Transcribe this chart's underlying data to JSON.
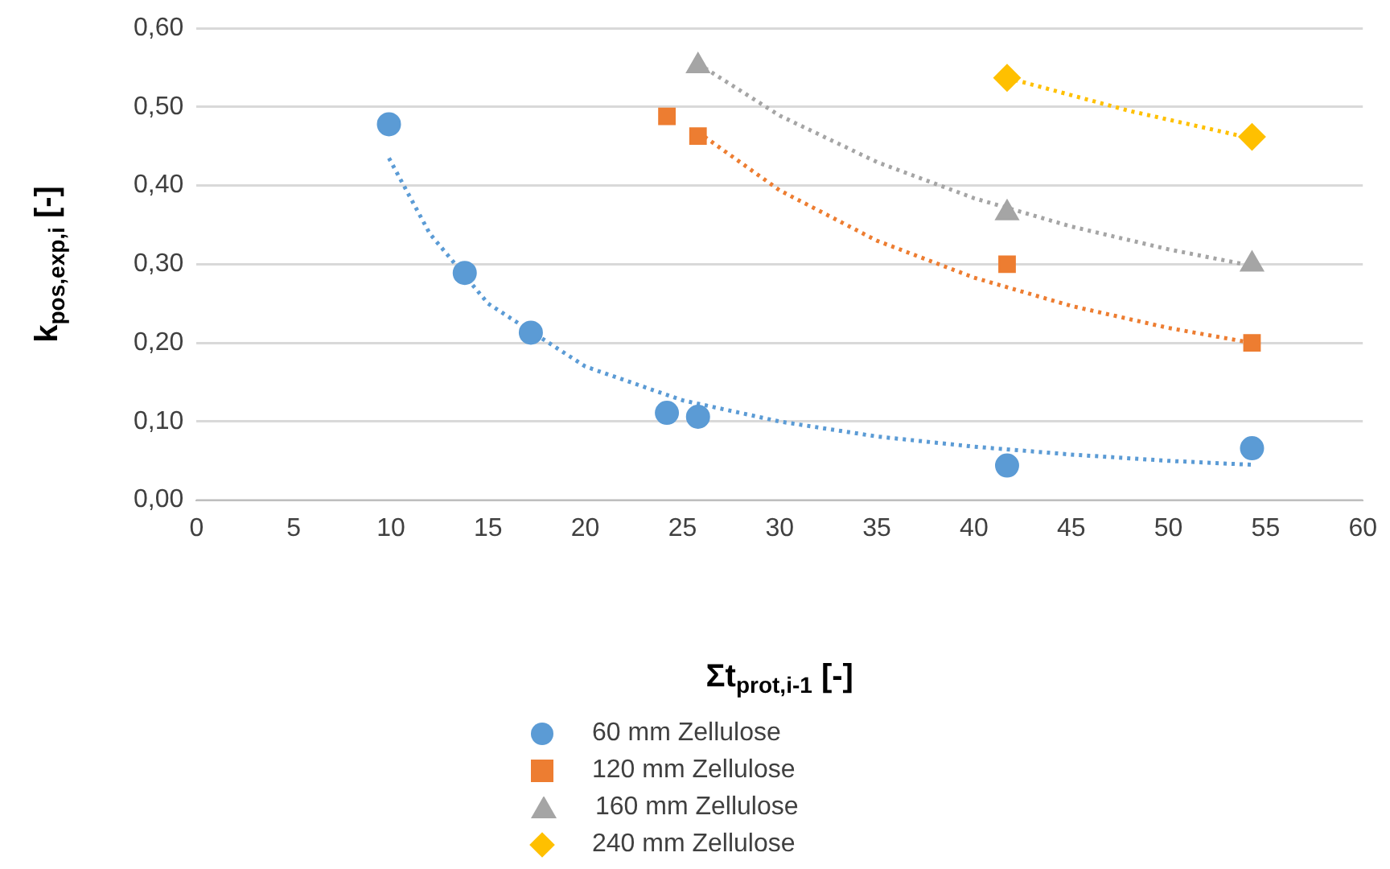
{
  "chart_data": {
    "type": "scatter",
    "xlabel": "Σt$_{prot,i-1}$ [-]",
    "ylabel": "k$_{pos,exp,i}$ [-]",
    "xlim": [
      0,
      60
    ],
    "xticks": [
      0,
      5,
      10,
      15,
      20,
      25,
      30,
      35,
      40,
      45,
      50,
      55,
      60
    ],
    "ylim": [
      0,
      0.6
    ],
    "yticks": [
      {
        "value": 0,
        "label": "0,00"
      },
      {
        "value": 0.1,
        "label": "0,10"
      },
      {
        "value": 0.2,
        "label": "0,20"
      },
      {
        "value": 0.3,
        "label": "0,30"
      },
      {
        "value": 0.4,
        "label": "0,40"
      },
      {
        "value": 0.5,
        "label": "0,50"
      },
      {
        "value": 0.6,
        "label": "0,60"
      }
    ],
    "grid": "y",
    "legend": "bottom",
    "series": [
      {
        "name": "60 mm Zellulose",
        "color": "#5b9bd5",
        "marker": "circle",
        "x": [
          9.9,
          13.8,
          17.2,
          24.2,
          25.8,
          41.7,
          54.3
        ],
        "values": [
          0.478,
          0.289,
          0.213,
          0.111,
          0.106,
          0.044,
          0.066
        ]
      },
      {
        "name": "120 mm Zellulose",
        "color": "#ed7d31",
        "marker": "square",
        "x": [
          24.2,
          25.8,
          41.7,
          54.3
        ],
        "values": [
          0.488,
          0.463,
          0.3,
          0.2
        ]
      },
      {
        "name": "160 mm Zellulose",
        "color": "#a5a5a5",
        "marker": "triangle",
        "x": [
          25.8,
          41.7,
          54.3
        ],
        "values": [
          0.552,
          0.365,
          0.3
        ]
      },
      {
        "name": "240 mm Zellulose",
        "color": "#ffc000",
        "marker": "diamond",
        "x": [
          41.7,
          54.3
        ],
        "values": [
          0.537,
          0.462
        ]
      },
      {
        "type": "line",
        "color": "#5b9bd5",
        "line_style": "dotted",
        "marker": "none",
        "x": [
          9.9,
          12,
          15,
          20,
          25,
          30,
          35,
          40,
          45,
          50,
          54.3
        ],
        "values": [
          0.435,
          0.339,
          0.25,
          0.17,
          0.127,
          0.1,
          0.081,
          0.068,
          0.058,
          0.05,
          0.045
        ]
      },
      {
        "type": "line",
        "color": "#ed7d31",
        "line_style": "dotted",
        "marker": "none",
        "x": [
          25.8,
          30,
          35,
          40,
          45,
          50,
          54.3
        ],
        "values": [
          0.468,
          0.394,
          0.33,
          0.283,
          0.247,
          0.219,
          0.2
        ]
      },
      {
        "type": "line",
        "color": "#a5a5a5",
        "line_style": "dotted",
        "marker": "none",
        "x": [
          25.8,
          30,
          35,
          40,
          45,
          50,
          54.3
        ],
        "values": [
          0.555,
          0.489,
          0.43,
          0.384,
          0.348,
          0.319,
          0.298
        ]
      },
      {
        "type": "line",
        "color": "#ffc000",
        "line_style": "dotted",
        "marker": "none",
        "x": [
          41.7,
          48,
          54.3
        ],
        "values": [
          0.537,
          0.495,
          0.46
        ]
      }
    ]
  }
}
